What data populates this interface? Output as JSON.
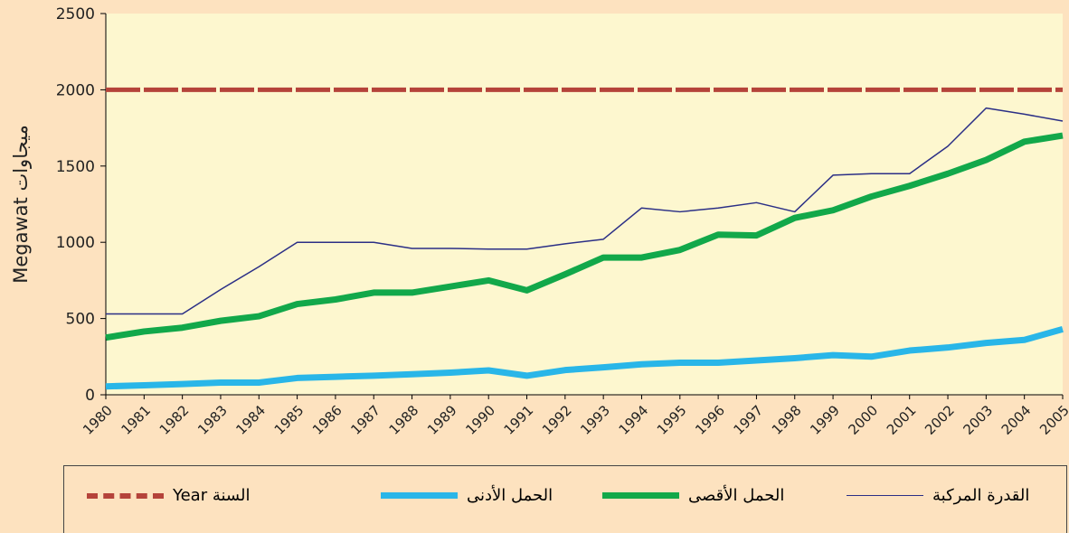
{
  "chart_data": {
    "type": "line",
    "y_label": "Megawat  ميجاوات",
    "categories": [
      "1980",
      "1981",
      "1982",
      "1983",
      "1984",
      "1985",
      "1986",
      "1987",
      "1988",
      "1989",
      "1990",
      "1991",
      "1992",
      "1993",
      "1994",
      "1995",
      "1996",
      "1997",
      "1998",
      "1999",
      "2000",
      "2001",
      "2002",
      "2003",
      "2004",
      "2005"
    ],
    "series": [
      {
        "name": "السنة Year",
        "color": "#b5433a",
        "dashed": true,
        "values": [
          2000,
          2000,
          2000,
          2000,
          2000,
          2000,
          2000,
          2000,
          2000,
          2000,
          2000,
          2000,
          2000,
          2000,
          2000,
          2000,
          2000,
          2000,
          2000,
          2000,
          2000,
          2000,
          2000,
          2000,
          2000,
          2000
        ]
      },
      {
        "name": "الحمل الأدنى",
        "color": "#29b6e8",
        "width": 7,
        "values": [
          55,
          62,
          70,
          80,
          80,
          110,
          118,
          125,
          135,
          145,
          160,
          125,
          162,
          180,
          200,
          210,
          210,
          225,
          240,
          260,
          250,
          290,
          310,
          340,
          360,
          430
        ]
      },
      {
        "name": "الحمل الأقصى",
        "color": "#12a84a",
        "width": 7,
        "values": [
          375,
          415,
          440,
          485,
          515,
          595,
          625,
          670,
          670,
          710,
          750,
          685,
          790,
          900,
          900,
          950,
          1050,
          1045,
          1160,
          1210,
          1300,
          1370,
          1450,
          1540,
          1660,
          1700
        ]
      },
      {
        "name": "القدرة المركبة",
        "color": "#2b2f86",
        "width": 1.5,
        "values": [
          530,
          530,
          530,
          690,
          840,
          1000,
          1000,
          1000,
          960,
          960,
          955,
          955,
          990,
          1020,
          1225,
          1200,
          1225,
          1260,
          1200,
          1440,
          1450,
          1450,
          1630,
          1880,
          1840,
          1795
        ]
      }
    ],
    "ylim": [
      0,
      2500
    ],
    "yticks": [
      0,
      500,
      1000,
      1500,
      2000,
      2500
    ]
  }
}
